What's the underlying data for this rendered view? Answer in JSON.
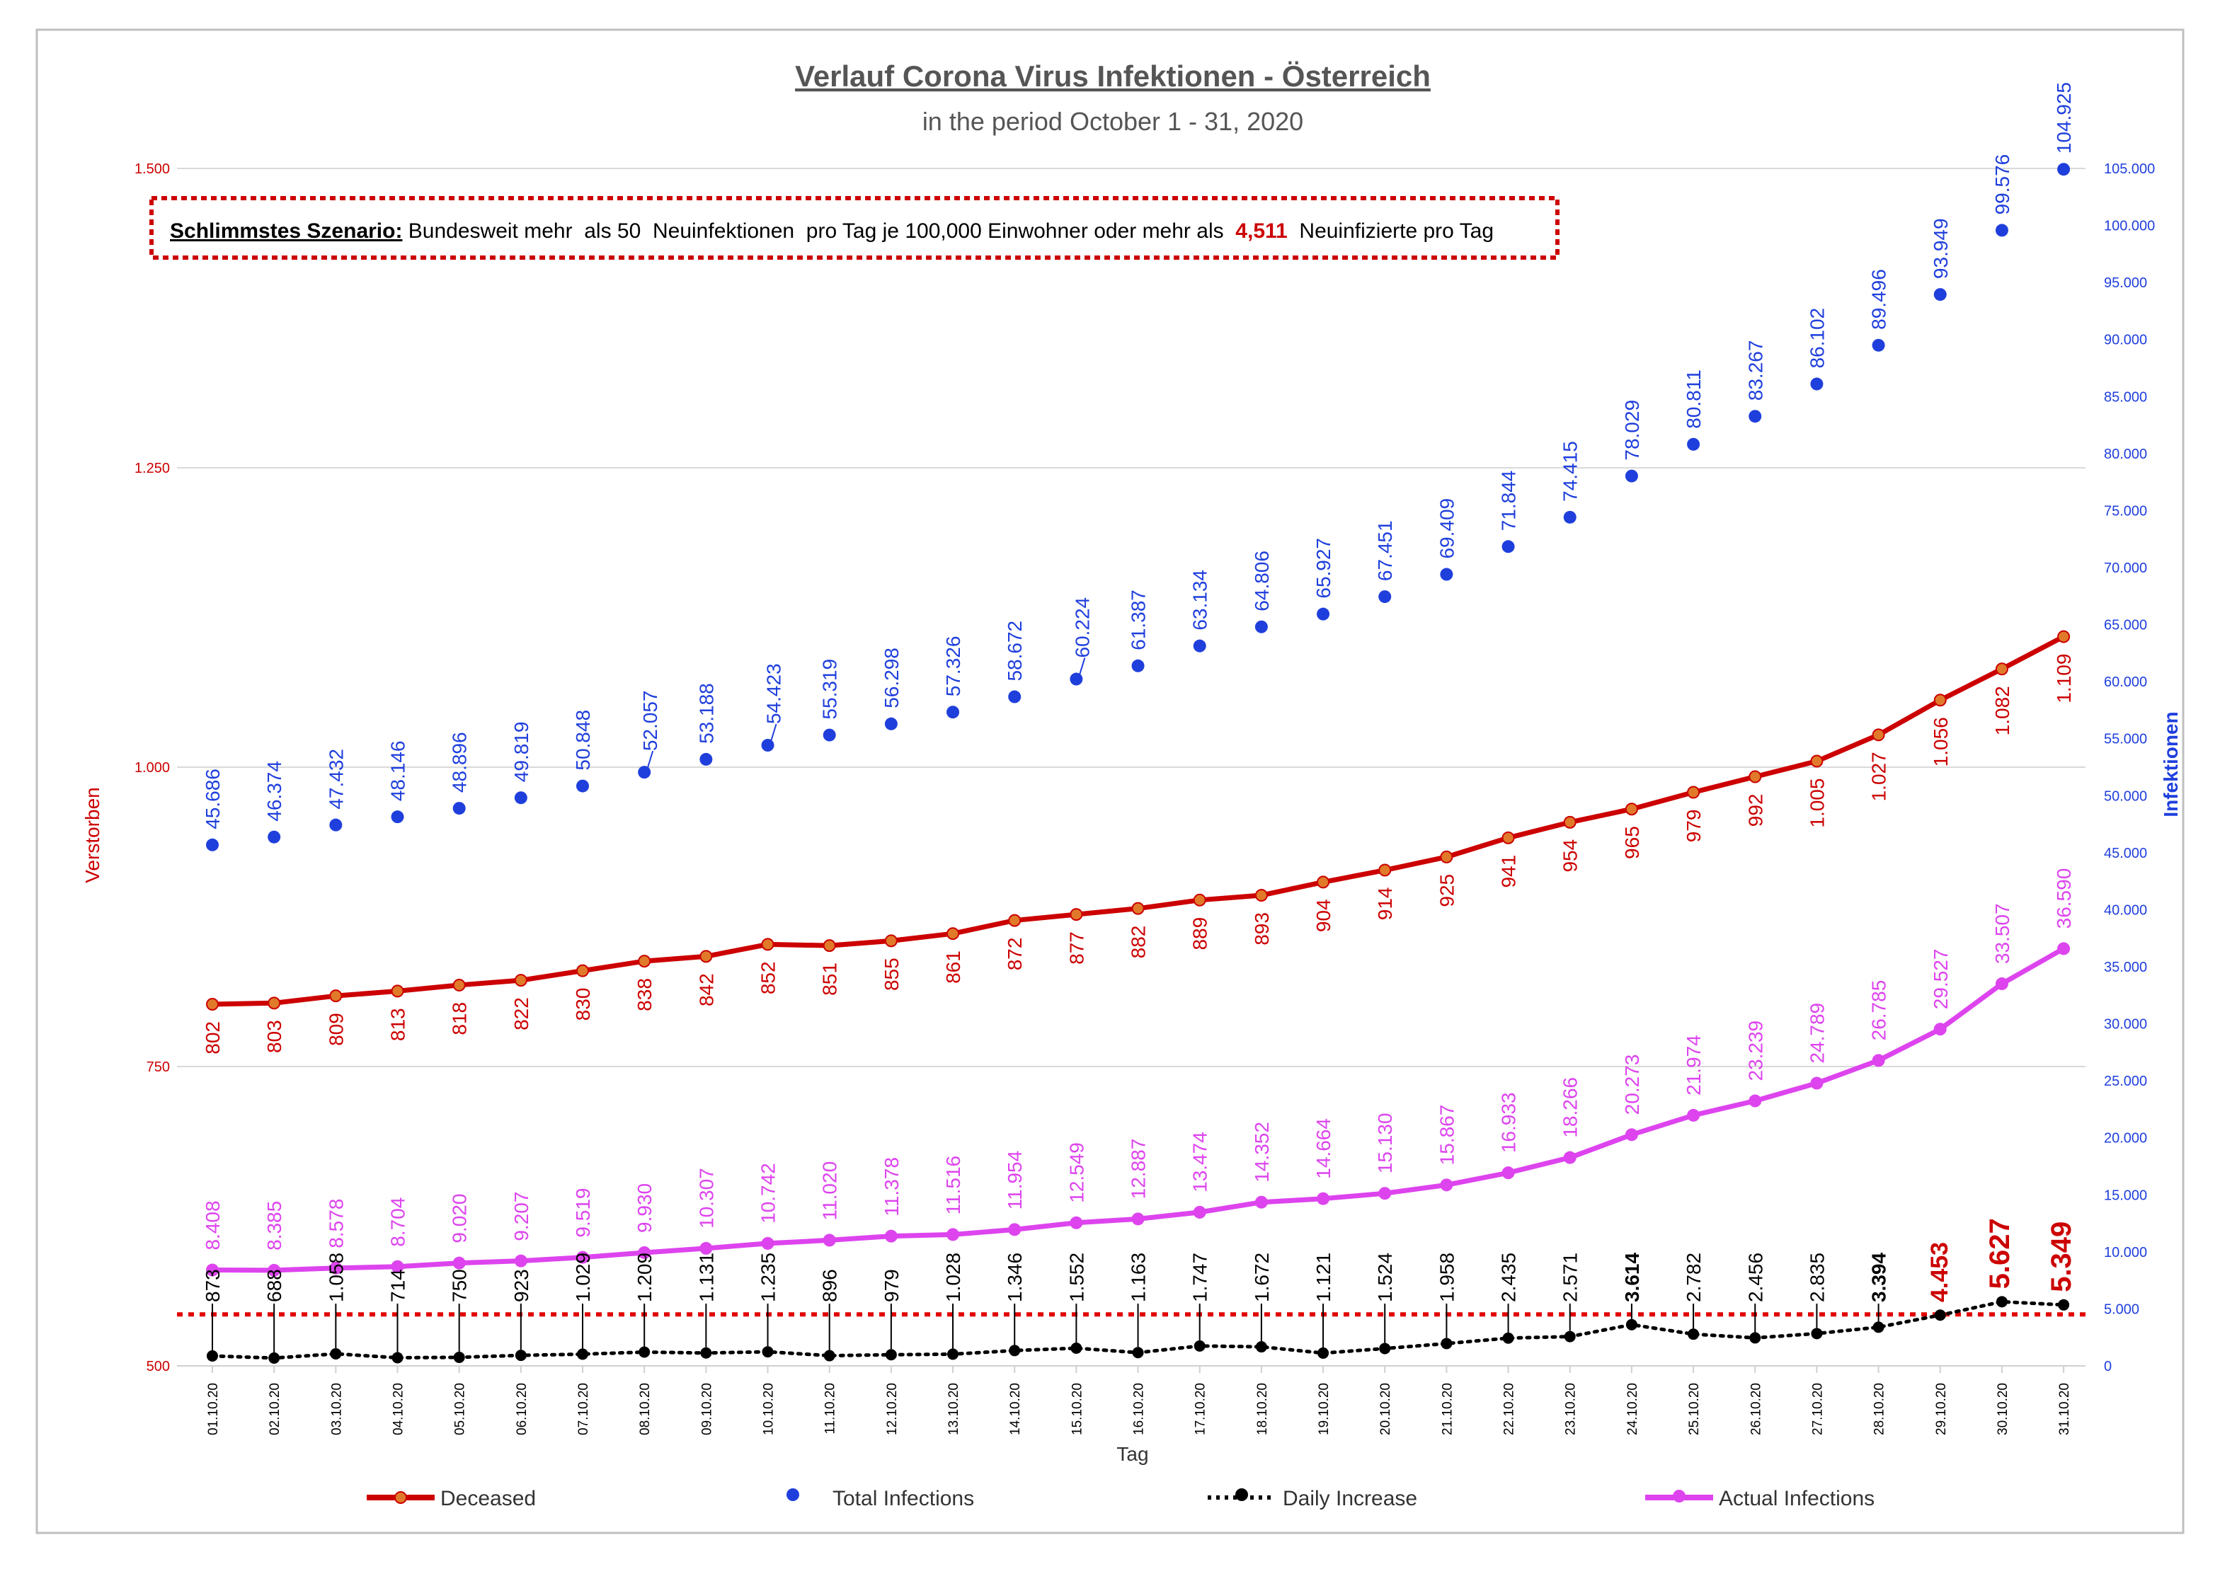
{
  "chart_data": {
    "type": "line",
    "title": "Verlauf Corona Virus Infektionen - Österreich",
    "subtitle": "in the period October  1 - 31, 2020",
    "annotation": {
      "label": "Schlimmstes Szenario:",
      "text_before": "Bundesweit mehr  als 50  Neuinfektionen  pro Tag je 100,000 Einwohner oder mehr als ",
      "highlight": "4,511",
      "text_after": " Neuinfizierte pro Tag"
    },
    "xlabel": "Tag",
    "ylabel_left": "Verstorben",
    "ylabel_right": "Infektionen",
    "ylim_left": [
      500,
      1500
    ],
    "ylim_right": [
      0,
      105000
    ],
    "yticks_left": [
      "500",
      "750",
      "1.000",
      "1.250",
      "1.500"
    ],
    "yticks_right": [
      "0",
      "5.000",
      "10.000",
      "15.000",
      "20.000",
      "25.000",
      "30.000",
      "35.000",
      "40.000",
      "45.000",
      "50.000",
      "55.000",
      "60.000",
      "65.000",
      "70.000",
      "75.000",
      "80.000",
      "85.000",
      "90.000",
      "95.000",
      "100.000",
      "105.000"
    ],
    "yticks_left_values": [
      500,
      750,
      1000,
      1250,
      1500
    ],
    "threshold_right": 4511,
    "grid": true,
    "legend_position": "bottom",
    "categories": [
      "01.10.20",
      "02.10.20",
      "03.10.20",
      "04.10.20",
      "05.10.20",
      "06.10.20",
      "07.10.20",
      "08.10.20",
      "09.10.20",
      "10.10.20",
      "11.10.20",
      "12.10.20",
      "13.10.20",
      "14.10.20",
      "15.10.20",
      "16.10.20",
      "17.10.20",
      "18.10.20",
      "19.10.20",
      "20.10.20",
      "21.10.20",
      "22.10.20",
      "23.10.20",
      "24.10.20",
      "25.10.20",
      "26.10.20",
      "27.10.20",
      "28.10.20",
      "29.10.20",
      "30.10.20",
      "31.10.20"
    ],
    "series": [
      {
        "name": "Deceased",
        "axis": "left",
        "color": "#cc0000",
        "values": [
          802,
          803,
          809,
          813,
          818,
          822,
          830,
          838,
          842,
          852,
          851,
          855,
          861,
          872,
          877,
          882,
          889,
          893,
          904,
          914,
          925,
          941,
          954,
          965,
          979,
          992,
          1005,
          1027,
          1056,
          1082,
          1109
        ],
        "labels": [
          "802",
          "803",
          "809",
          "813",
          "818",
          "822",
          "830",
          "838",
          "842",
          "852",
          "851",
          "855",
          "861",
          "872",
          "877",
          "882",
          "889",
          "893",
          "904",
          "914",
          "925",
          "941",
          "954",
          "965",
          "979",
          "992",
          "1.005",
          "1.027",
          "1.056",
          "1.082",
          "1.109"
        ]
      },
      {
        "name": "Total Infections",
        "axis": "right",
        "color": "#1f3fdc",
        "values": [
          45686,
          46374,
          47432,
          48146,
          48896,
          49819,
          50848,
          52057,
          53188,
          54423,
          55319,
          56298,
          57326,
          58672,
          60224,
          61387,
          63134,
          64806,
          65927,
          67451,
          69409,
          71844,
          74415,
          78029,
          80811,
          83267,
          86102,
          89496,
          93949,
          99576,
          104925
        ],
        "labels": [
          "45.686",
          "46.374",
          "47.432",
          "48.146",
          "48.896",
          "49.819",
          "50.848",
          "52.057",
          "53.188",
          "54.423",
          "55.319",
          "56.298",
          "57.326",
          "58.672",
          "60.224",
          "61.387",
          "63.134",
          "64.806",
          "65.927",
          "67.451",
          "69.409",
          "71.844",
          "74.415",
          "78.029",
          "80.811",
          "83.267",
          "86.102",
          "89.496",
          "93.949",
          "99.576",
          "104.925"
        ]
      },
      {
        "name": "Daily Increase",
        "axis": "right",
        "color": "#000000",
        "values": [
          873,
          688,
          1058,
          714,
          750,
          923,
          1029,
          1209,
          1131,
          1235,
          896,
          979,
          1028,
          1346,
          1552,
          1163,
          1747,
          1672,
          1121,
          1524,
          1958,
          2435,
          2571,
          3614,
          2782,
          2456,
          2835,
          3394,
          4453,
          5627,
          5349
        ],
        "labels": [
          "873",
          "688",
          "1.058",
          "714",
          "750",
          "923",
          "1.029",
          "1.209",
          "1.131",
          "1.235",
          "896",
          "979",
          "1.028",
          "1.346",
          "1.552",
          "1.163",
          "1.747",
          "1.672",
          "1.121",
          "1.524",
          "1.958",
          "2.435",
          "2.571",
          "3.614",
          "2.782",
          "2.456",
          "2.835",
          "3.394",
          "4.453",
          "5.627",
          "5.349"
        ]
      },
      {
        "name": "Actual Infections",
        "axis": "right",
        "color": "#dd44ee",
        "values": [
          8408,
          8385,
          8578,
          8704,
          9020,
          9207,
          9519,
          9930,
          10307,
          10742,
          11020,
          11378,
          11516,
          11954,
          12549,
          12887,
          13474,
          14352,
          14664,
          15130,
          15867,
          16933,
          18266,
          20273,
          21974,
          23239,
          24789,
          26785,
          29527,
          33507,
          36590
        ],
        "labels": [
          "8.408",
          "8.385",
          "8.578",
          "8.704",
          "9.020",
          "9.207",
          "9.519",
          "9.930",
          "10.307",
          "10.742",
          "11.020",
          "11.378",
          "11.516",
          "11.954",
          "12.549",
          "12.887",
          "13.474",
          "14.352",
          "14.664",
          "15.130",
          "15.867",
          "16.933",
          "18.266",
          "20.273",
          "21.974",
          "23.239",
          "24.789",
          "26.785",
          "29.527",
          "33.507",
          "36.590"
        ]
      }
    ]
  },
  "colors": {
    "deceased": "#cc0000",
    "total": "#1f3fdc",
    "daily": "#000000",
    "actual": "#dd44ee",
    "threshold": "#e00000",
    "grid": "#d9d9d9",
    "frame": "#bfbfbf"
  }
}
